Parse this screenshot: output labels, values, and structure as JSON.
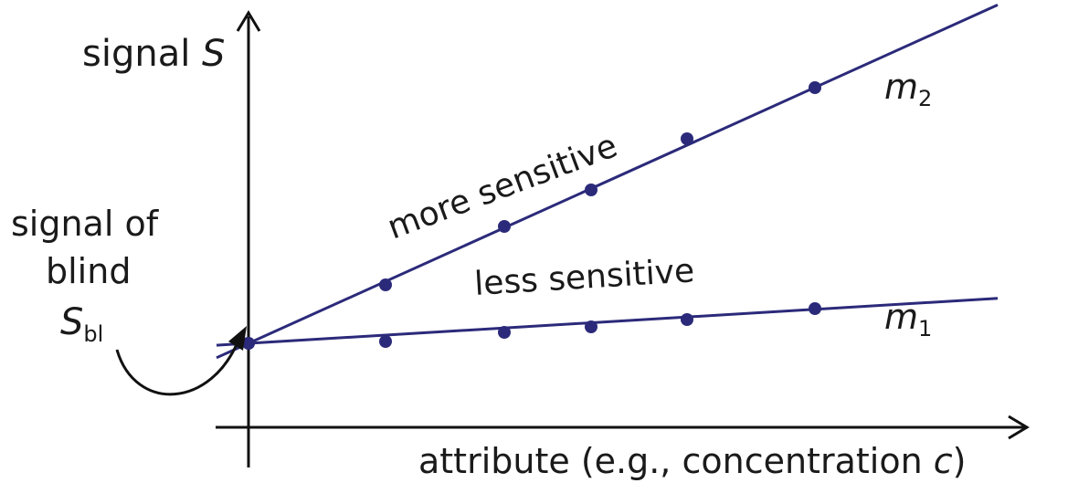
{
  "colors": {
    "line": "#2b2a7a",
    "point": "#2b2a7a",
    "axis": "#111111",
    "text": "#1a1a1a"
  },
  "y_axis_label": {
    "text": "signal ",
    "var": "S"
  },
  "x_axis_label": {
    "text": "attribute (e.g., concentration ",
    "var": "c",
    "close": ")"
  },
  "blind_label": {
    "line1": "signal of",
    "line2": "blind",
    "var": "S",
    "sub": "bl"
  },
  "curve_more": {
    "label": "more sensitive",
    "name": "m",
    "sub": "2"
  },
  "curve_less": {
    "label": "less sensitive",
    "name": "m",
    "sub": "1"
  },
  "chart_data": {
    "type": "scatter",
    "series": [
      {
        "name": "m2",
        "x": [
          0,
          1.5,
          2.8,
          3.75,
          4.8,
          6.2
        ],
        "y": [
          2.3,
          3.9,
          5.5,
          6.5,
          7.9,
          9.3
        ]
      },
      {
        "name": "m1",
        "x": [
          0,
          1.5,
          2.8,
          3.75,
          4.8,
          6.2
        ],
        "y": [
          2.3,
          2.35,
          2.6,
          2.75,
          2.95,
          3.25
        ]
      }
    ],
    "fit_lines": [
      {
        "name": "m2",
        "intercept": 2.3,
        "slope": 1.13
      },
      {
        "name": "m1",
        "intercept": 2.3,
        "slope": 0.15
      }
    ],
    "xlim": [
      -0.35,
      8.2
    ],
    "ylim": [
      -3.3,
      10.2
    ]
  }
}
